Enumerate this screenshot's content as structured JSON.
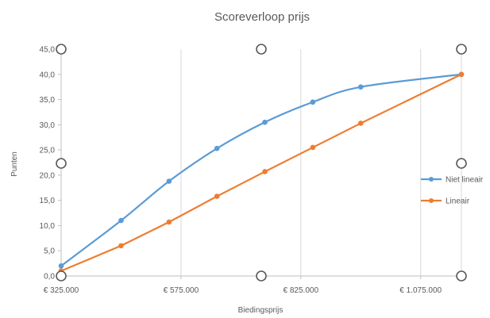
{
  "chart_data": {
    "type": "line",
    "title": "Scoreverloop prijs",
    "xlabel": "Biedingsprijs",
    "ylabel": "Punten",
    "x_tick_labels": [
      "€ 325.000",
      "€ 575.000",
      "€ 825.000",
      "€ 1.075.000"
    ],
    "x_ticks": [
      325000,
      575000,
      825000,
      1075000
    ],
    "y_tick_labels": [
      "0,0",
      "5,0",
      "10,0",
      "15,0",
      "20,0",
      "25,0",
      "30,0",
      "35,0",
      "40,0",
      "45,0"
    ],
    "y_ticks": [
      0,
      5,
      10,
      15,
      20,
      25,
      30,
      35,
      40,
      45
    ],
    "xlim": [
      325000,
      1160000
    ],
    "ylim": [
      0,
      45
    ],
    "grid": "vertical",
    "legend_position": "right",
    "series": [
      {
        "name": "Niet lineair",
        "color": "#5B9BD5",
        "x": [
          325000,
          450000,
          550000,
          650000,
          750000,
          850000,
          950000,
          1160000
        ],
        "y": [
          2.0,
          11.0,
          18.8,
          25.3,
          30.5,
          34.5,
          37.5,
          40.0
        ]
      },
      {
        "name": "Lineair",
        "color": "#ED7D31",
        "x": [
          325000,
          450000,
          550000,
          650000,
          750000,
          850000,
          950000,
          1160000
        ],
        "y": [
          1.0,
          6.0,
          10.7,
          15.8,
          20.7,
          25.5,
          30.3,
          40.0
        ]
      }
    ]
  }
}
